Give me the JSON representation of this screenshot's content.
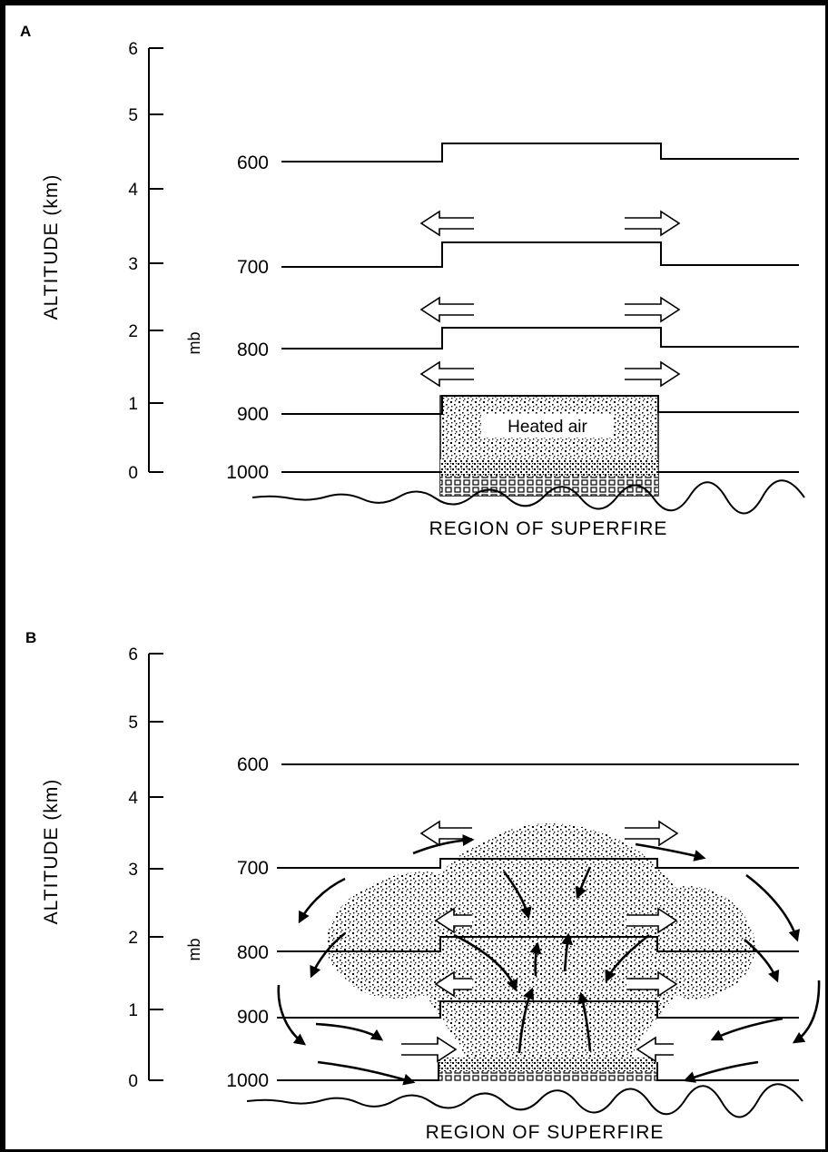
{
  "panels": [
    {
      "id": "A",
      "label": "A",
      "ylabel": "ALTITUDE (km)",
      "yticks": [
        "0",
        "1",
        "2",
        "3",
        "4",
        "5",
        "6"
      ],
      "pressure_unit": "mb",
      "pressure_levels": [
        "600",
        "700",
        "800",
        "900",
        "1000"
      ],
      "inner_label": "Heated air",
      "caption": "REGION OF SUPERFIRE"
    },
    {
      "id": "B",
      "label": "B",
      "ylabel": "ALTITUDE (km)",
      "yticks": [
        "0",
        "1",
        "2",
        "3",
        "4",
        "5",
        "6"
      ],
      "pressure_unit": "mb",
      "pressure_levels": [
        "600",
        "700",
        "800",
        "900",
        "1000"
      ],
      "caption": "REGION OF SUPERFIRE"
    }
  ],
  "colors": {
    "ink": "#000000",
    "background": "#ffffff"
  }
}
